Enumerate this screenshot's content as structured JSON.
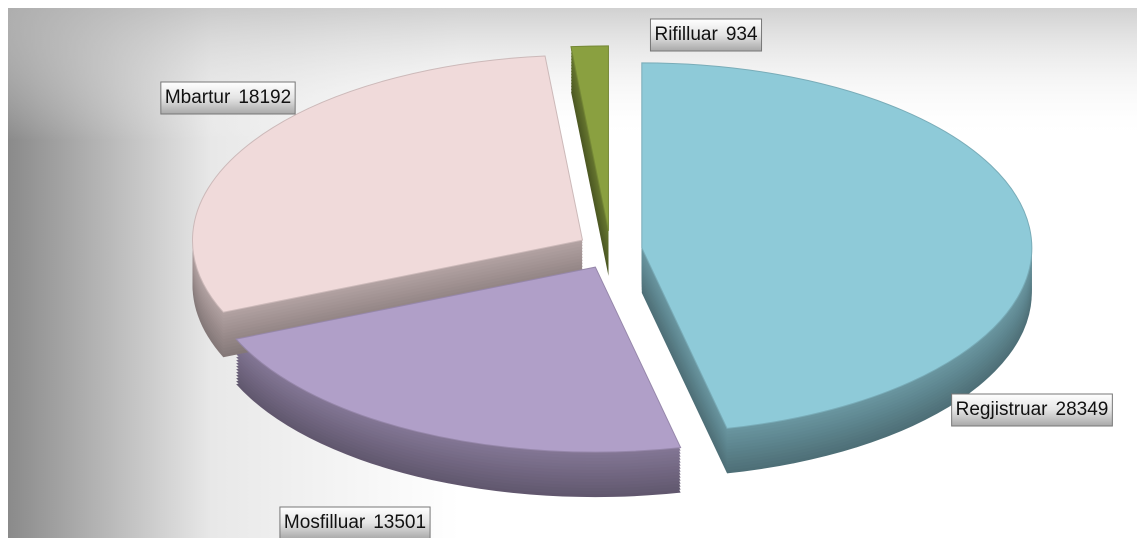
{
  "chart_data": {
    "type": "pie",
    "categories": [
      "Regjistruar",
      "Mosfilluar",
      "Mbartur",
      "Rifilluar"
    ],
    "values": [
      28349,
      13501,
      18192,
      934
    ],
    "colors": [
      "#8ecad8",
      "#b09fc8",
      "#f0dada",
      "#8aa040"
    ]
  }
}
